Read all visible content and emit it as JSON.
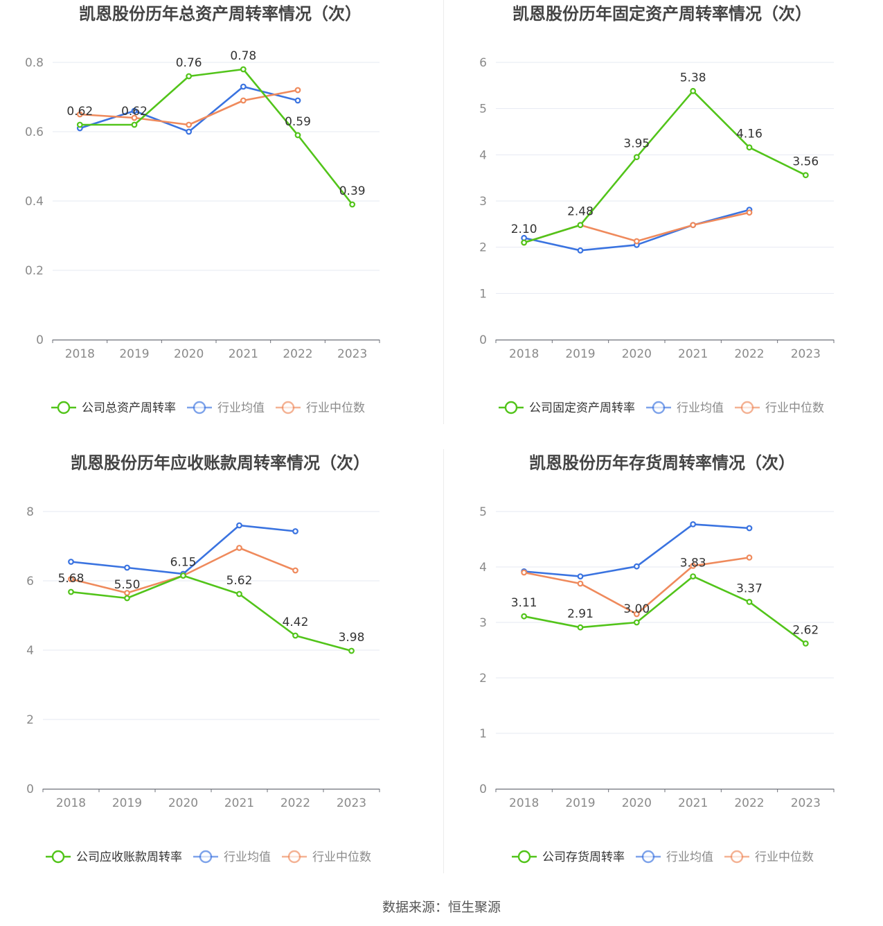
{
  "colors": {
    "company": "#52c41a",
    "industry_avg": "#3a73e0",
    "industry_median": "#ef8a5c",
    "grid": "#e6e8f2",
    "axis": "#6e7079",
    "tick_text": "#8a8a8a",
    "title_text": "#444444",
    "label_text": "#333333"
  },
  "footer": {
    "source": "数据来源：恒生聚源"
  },
  "chart_data": [
    {
      "type": "line",
      "title": "凯恩股份历年总资产周转率情况（次）",
      "categories": [
        "2018",
        "2019",
        "2020",
        "2021",
        "2022",
        "2023"
      ],
      "y_ticks": [
        "0",
        "0.2",
        "0.4",
        "0.6",
        "0.8"
      ],
      "ylim": [
        0,
        0.8
      ],
      "legend_position": "bottom",
      "series": [
        {
          "name": "公司总资产周转率",
          "key": "company",
          "values": [
            0.62,
            0.62,
            0.76,
            0.78,
            0.59,
            0.39
          ],
          "labels": [
            "0.62",
            "0.62",
            "0.76",
            "0.78",
            "0.59",
            "0.39"
          ]
        },
        {
          "name": "行业均值",
          "key": "industry_avg",
          "values": [
            0.61,
            0.66,
            0.6,
            0.73,
            0.69,
            null
          ]
        },
        {
          "name": "行业中位数",
          "key": "industry_median",
          "values": [
            0.65,
            0.64,
            0.62,
            0.69,
            0.72,
            null
          ]
        }
      ]
    },
    {
      "type": "line",
      "title": "凯恩股份历年固定资产周转率情况（次）",
      "categories": [
        "2018",
        "2019",
        "2020",
        "2021",
        "2022",
        "2023"
      ],
      "y_ticks": [
        "0",
        "1",
        "2",
        "3",
        "4",
        "5",
        "6"
      ],
      "ylim": [
        0,
        6
      ],
      "legend_position": "bottom",
      "series": [
        {
          "name": "公司固定资产周转率",
          "key": "company",
          "values": [
            2.1,
            2.48,
            3.95,
            5.38,
            4.16,
            3.56
          ],
          "labels": [
            "2.10",
            "2.48",
            "3.95",
            "5.38",
            "4.16",
            "3.56"
          ]
        },
        {
          "name": "行业均值",
          "key": "industry_avg",
          "values": [
            2.2,
            1.93,
            2.05,
            2.48,
            2.81,
            null
          ]
        },
        {
          "name": "行业中位数",
          "key": "industry_median",
          "values": [
            2.1,
            2.48,
            2.13,
            2.48,
            2.75,
            null
          ]
        }
      ]
    },
    {
      "type": "line",
      "title": "凯恩股份历年应收账款周转率情况（次）",
      "categories": [
        "2018",
        "2019",
        "2020",
        "2021",
        "2022",
        "2023"
      ],
      "y_ticks": [
        "0",
        "2",
        "4",
        "6",
        "8"
      ],
      "ylim": [
        0,
        8
      ],
      "legend_position": "bottom",
      "series": [
        {
          "name": "公司应收账款周转率",
          "key": "company",
          "values": [
            5.68,
            5.5,
            6.15,
            5.62,
            4.42,
            3.98
          ],
          "labels": [
            "5.68",
            "5.50",
            "6.15",
            "5.62",
            "4.42",
            "3.98"
          ]
        },
        {
          "name": "行业均值",
          "key": "industry_avg",
          "values": [
            6.55,
            6.38,
            6.2,
            7.6,
            7.43,
            null
          ]
        },
        {
          "name": "行业中位数",
          "key": "industry_median",
          "values": [
            6.05,
            5.65,
            6.15,
            6.95,
            6.3,
            null
          ]
        }
      ]
    },
    {
      "type": "line",
      "title": "凯恩股份历年存货周转率情况（次）",
      "categories": [
        "2018",
        "2019",
        "2020",
        "2021",
        "2022",
        "2023"
      ],
      "y_ticks": [
        "0",
        "1",
        "2",
        "3",
        "4",
        "5"
      ],
      "ylim": [
        0,
        5
      ],
      "legend_position": "bottom",
      "series": [
        {
          "name": "公司存货周转率",
          "key": "company",
          "values": [
            3.11,
            2.91,
            3.0,
            3.83,
            3.37,
            2.62
          ],
          "labels": [
            "3.11",
            "2.91",
            "3.00",
            "3.83",
            "3.37",
            "2.62"
          ]
        },
        {
          "name": "行业均值",
          "key": "industry_avg",
          "values": [
            3.92,
            3.83,
            4.01,
            4.77,
            4.7,
            null
          ]
        },
        {
          "name": "行业中位数",
          "key": "industry_median",
          "values": [
            3.9,
            3.7,
            3.15,
            4.02,
            4.17,
            null
          ]
        }
      ]
    }
  ]
}
